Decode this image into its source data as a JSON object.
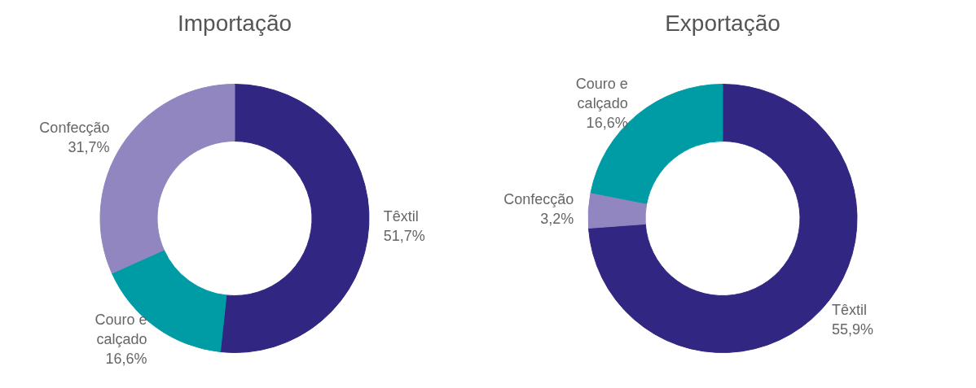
{
  "chart_data": [
    {
      "type": "donut",
      "title": "Importação",
      "categories": [
        "Têxtil",
        "Couro e calçado",
        "Confecção"
      ],
      "values": [
        51.7,
        16.6,
        31.7
      ],
      "value_labels": [
        "51,7%",
        "16,6%",
        "31,7%"
      ],
      "colors": [
        "#312682",
        "#009ca6",
        "#9186bf"
      ]
    },
    {
      "type": "donut",
      "title": "Exportação",
      "categories": [
        "Têxtil",
        "Confecção",
        "Couro e calçado"
      ],
      "values": [
        55.9,
        3.2,
        16.6
      ],
      "value_labels": [
        "55,9%",
        "3,2%",
        "16,6%"
      ],
      "colors": [
        "#312682",
        "#9186bf",
        "#009ca6"
      ]
    }
  ]
}
